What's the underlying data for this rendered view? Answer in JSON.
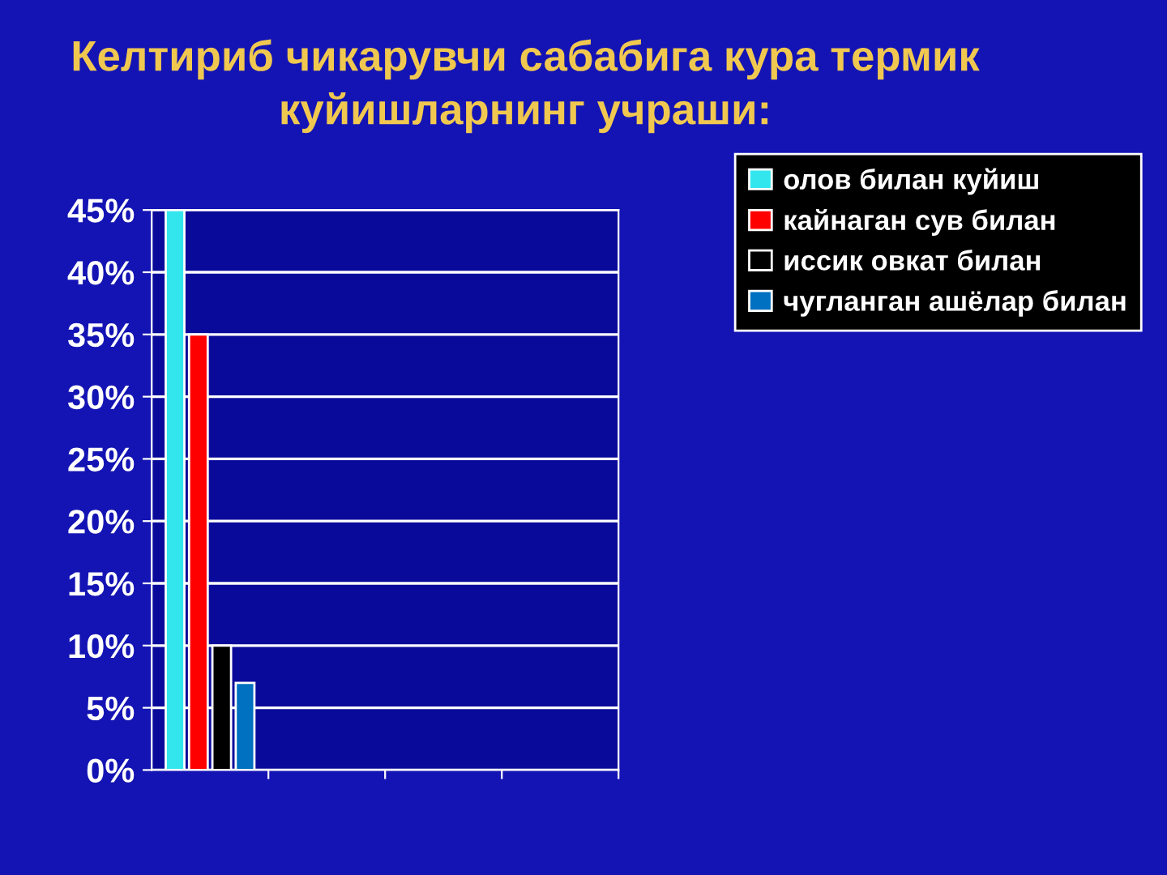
{
  "chart_data": {
    "type": "bar",
    "title": "Келтириб чикарувчи сабабига кура термик\nкуйишларнинг учраши:",
    "categories": [
      null,
      null,
      null,
      null
    ],
    "series": [
      {
        "name": "олов билан куйиш",
        "color": "#33e6ee",
        "values": [
          45,
          null,
          null,
          null
        ]
      },
      {
        "name": "кайнаган сув билан",
        "color": "#ff0000",
        "values": [
          35,
          null,
          null,
          null
        ]
      },
      {
        "name": "иссик овкат билан",
        "color": "#000000",
        "values": [
          10,
          null,
          null,
          null
        ]
      },
      {
        "name": "чугланган ашёлар билан",
        "color": "#0070c0",
        "values": [
          7,
          null,
          null,
          null
        ]
      }
    ],
    "ylim": [
      0,
      45
    ],
    "yticks": [
      {
        "value": 0,
        "label": "0%"
      },
      {
        "value": 5,
        "label": "5%"
      },
      {
        "value": 10,
        "label": "10%"
      },
      {
        "value": 15,
        "label": "15%"
      },
      {
        "value": 20,
        "label": "20%"
      },
      {
        "value": 25,
        "label": "25%"
      },
      {
        "value": 30,
        "label": "30%"
      },
      {
        "value": 35,
        "label": "35%"
      },
      {
        "value": 40,
        "label": "40%"
      },
      {
        "value": 45,
        "label": "45%"
      }
    ],
    "grid": "y",
    "legend": "top right"
  }
}
